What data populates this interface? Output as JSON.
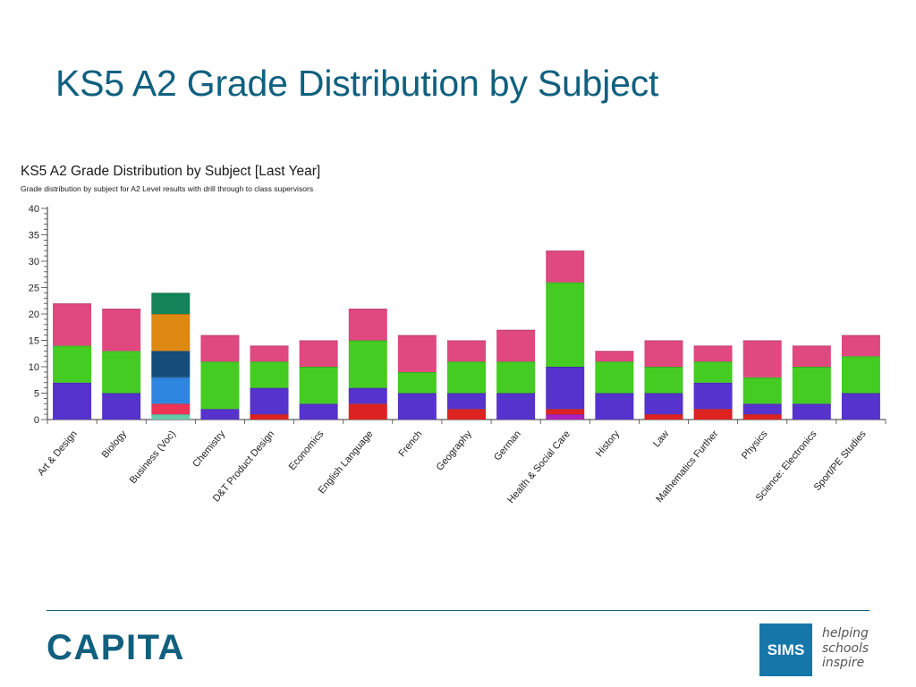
{
  "slide": {
    "title": "KS5 A2 Grade Distribution by Subject"
  },
  "chart_data": {
    "type": "bar",
    "stacked": true,
    "title": "KS5 A2 Grade Distribution by Subject [Last Year]",
    "subtitle": "Grade distribution by subject for A2 Level results  with drill through to class supervisors",
    "xlabel": "",
    "ylabel": "",
    "ylim": [
      0,
      40
    ],
    "yticks": [
      0,
      5,
      10,
      15,
      20,
      25,
      30,
      35,
      40
    ],
    "grid": false,
    "categories": [
      "Art & Design",
      "Biology",
      "Business (Voc)",
      "Chemistry",
      "D&T Product Design",
      "Economics",
      "English Language",
      "French",
      "Geography",
      "German",
      "Health & Social Care",
      "History",
      "Law",
      "Mathematics Further",
      "Physics",
      "Science: Electronics",
      "Sport/PE Studies"
    ],
    "segments": [
      [
        {
          "value": 7,
          "color": "#5533cc"
        },
        {
          "value": 7,
          "color": "#44cc22"
        },
        {
          "value": 8,
          "color": "#e04880"
        }
      ],
      [
        {
          "value": 5,
          "color": "#5533cc"
        },
        {
          "value": 8,
          "color": "#44cc22"
        },
        {
          "value": 8,
          "color": "#e04880"
        }
      ],
      [
        {
          "value": 1,
          "color": "#66ccaa"
        },
        {
          "value": 2,
          "color": "#ee3355"
        },
        {
          "value": 5,
          "color": "#2f86e0"
        },
        {
          "value": 5,
          "color": "#154d7a"
        },
        {
          "value": 7,
          "color": "#dd8811"
        },
        {
          "value": 4,
          "color": "#128458"
        }
      ],
      [
        {
          "value": 2,
          "color": "#5533cc"
        },
        {
          "value": 9,
          "color": "#44cc22"
        },
        {
          "value": 5,
          "color": "#e04880"
        }
      ],
      [
        {
          "value": 1,
          "color": "#dd2222"
        },
        {
          "value": 5,
          "color": "#5533cc"
        },
        {
          "value": 5,
          "color": "#44cc22"
        },
        {
          "value": 3,
          "color": "#e04880"
        }
      ],
      [
        {
          "value": 3,
          "color": "#5533cc"
        },
        {
          "value": 7,
          "color": "#44cc22"
        },
        {
          "value": 5,
          "color": "#e04880"
        }
      ],
      [
        {
          "value": 3,
          "color": "#dd2222"
        },
        {
          "value": 3,
          "color": "#5533cc"
        },
        {
          "value": 9,
          "color": "#44cc22"
        },
        {
          "value": 6,
          "color": "#e04880"
        }
      ],
      [
        {
          "value": 5,
          "color": "#5533cc"
        },
        {
          "value": 4,
          "color": "#44cc22"
        },
        {
          "value": 7,
          "color": "#e04880"
        }
      ],
      [
        {
          "value": 2,
          "color": "#dd2222"
        },
        {
          "value": 3,
          "color": "#5533cc"
        },
        {
          "value": 6,
          "color": "#44cc22"
        },
        {
          "value": 4,
          "color": "#e04880"
        }
      ],
      [
        {
          "value": 5,
          "color": "#5533cc"
        },
        {
          "value": 6,
          "color": "#44cc22"
        },
        {
          "value": 6,
          "color": "#e04880"
        }
      ],
      [
        {
          "value": 1,
          "color": "#aa22bb"
        },
        {
          "value": 1,
          "color": "#dd2222"
        },
        {
          "value": 8,
          "color": "#5533cc"
        },
        {
          "value": 16,
          "color": "#44cc22"
        },
        {
          "value": 6,
          "color": "#e04880"
        }
      ],
      [
        {
          "value": 5,
          "color": "#5533cc"
        },
        {
          "value": 6,
          "color": "#44cc22"
        },
        {
          "value": 2,
          "color": "#e04880"
        }
      ],
      [
        {
          "value": 1,
          "color": "#dd2222"
        },
        {
          "value": 4,
          "color": "#5533cc"
        },
        {
          "value": 5,
          "color": "#44cc22"
        },
        {
          "value": 5,
          "color": "#e04880"
        }
      ],
      [
        {
          "value": 2,
          "color": "#dd2222"
        },
        {
          "value": 5,
          "color": "#5533cc"
        },
        {
          "value": 4,
          "color": "#44cc22"
        },
        {
          "value": 3,
          "color": "#e04880"
        }
      ],
      [
        {
          "value": 1,
          "color": "#dd2222"
        },
        {
          "value": 2,
          "color": "#5533cc"
        },
        {
          "value": 5,
          "color": "#44cc22"
        },
        {
          "value": 7,
          "color": "#e04880"
        }
      ],
      [
        {
          "value": 3,
          "color": "#5533cc"
        },
        {
          "value": 7,
          "color": "#44cc22"
        },
        {
          "value": 4,
          "color": "#e04880"
        }
      ],
      [
        {
          "value": 5,
          "color": "#5533cc"
        },
        {
          "value": 7,
          "color": "#44cc22"
        },
        {
          "value": 4,
          "color": "#e04880"
        }
      ]
    ]
  },
  "footer": {
    "company_logo": "CAPITA",
    "product_logo": "SIMS",
    "tagline_line1": "helping",
    "tagline_line2": "schools",
    "tagline_line3": "inspire",
    "accent_color": "#11607f"
  }
}
